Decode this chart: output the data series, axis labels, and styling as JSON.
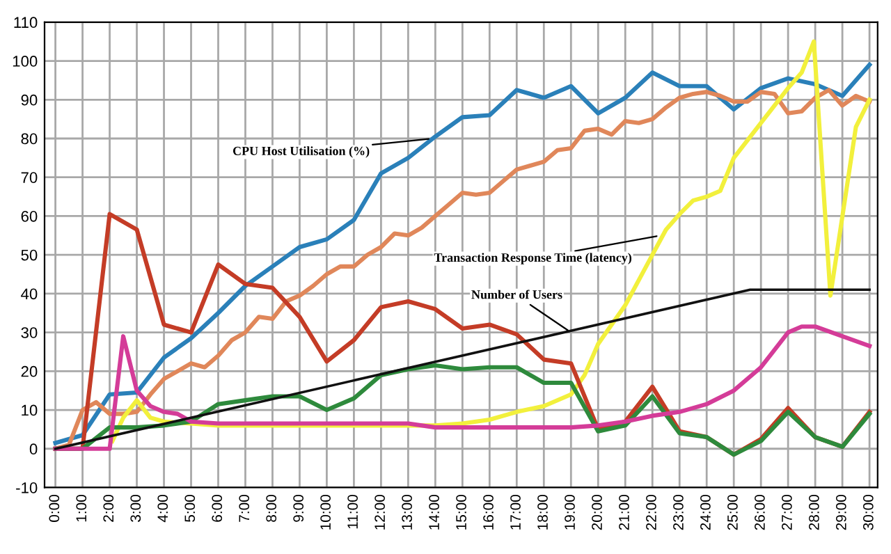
{
  "chart_data": {
    "type": "line",
    "xlim": [
      -0.4,
      30.3
    ],
    "ylim": [
      -10,
      110
    ],
    "xticks": [
      {
        "value": 0,
        "label": "0:00"
      },
      {
        "value": 1,
        "label": "1:00"
      },
      {
        "value": 2,
        "label": "2:00"
      },
      {
        "value": 3,
        "label": "3:00"
      },
      {
        "value": 4,
        "label": "4:00"
      },
      {
        "value": 5,
        "label": "5:00"
      },
      {
        "value": 6,
        "label": "6:00"
      },
      {
        "value": 7,
        "label": "7:00"
      },
      {
        "value": 8,
        "label": "8:00"
      },
      {
        "value": 9,
        "label": "9:00"
      },
      {
        "value": 10,
        "label": "10:00"
      },
      {
        "value": 11,
        "label": "11:00"
      },
      {
        "value": 12,
        "label": "12:00"
      },
      {
        "value": 13,
        "label": "13:00"
      },
      {
        "value": 14,
        "label": "14:00"
      },
      {
        "value": 15,
        "label": "15:00"
      },
      {
        "value": 16,
        "label": "16:00"
      },
      {
        "value": 17,
        "label": "17:00"
      },
      {
        "value": 18,
        "label": "18:00"
      },
      {
        "value": 19,
        "label": "19:00"
      },
      {
        "value": 20,
        "label": "20:00"
      },
      {
        "value": 21,
        "label": "21:00"
      },
      {
        "value": 22,
        "label": "22:00"
      },
      {
        "value": 23,
        "label": "23:00"
      },
      {
        "value": 24,
        "label": "24:00"
      },
      {
        "value": 25,
        "label": "25:00"
      },
      {
        "value": 26,
        "label": "26:00"
      },
      {
        "value": 27,
        "label": "27:00"
      },
      {
        "value": 28,
        "label": "28:00"
      },
      {
        "value": 29,
        "label": "29:00"
      },
      {
        "value": 30,
        "label": "30:00"
      }
    ],
    "yticks": [
      -10,
      0,
      10,
      20,
      30,
      40,
      50,
      60,
      70,
      80,
      90,
      100,
      110
    ],
    "grid": true,
    "legend": false,
    "marker": "none",
    "line_style": "solid",
    "series": [
      {
        "color": "#2a80b9",
        "x": [
          0,
          1,
          2,
          3,
          4,
          5,
          6,
          7,
          8,
          9,
          10,
          11,
          12,
          13,
          14,
          15,
          16,
          17,
          18,
          19,
          20,
          21,
          22,
          23,
          24,
          25,
          26,
          27,
          28,
          29,
          30
        ],
        "values": [
          1.5,
          3.5,
          14,
          14.5,
          23.5,
          28.5,
          35,
          42,
          47,
          52,
          54,
          59,
          71,
          75,
          80.5,
          85.5,
          86,
          92.5,
          90.5,
          93.5,
          86.5,
          90.5,
          97,
          93.5,
          93.5,
          87.5,
          93,
          95.5,
          94,
          91,
          99
        ]
      },
      {
        "color": "#e0875a",
        "x": [
          0,
          0.5,
          1,
          1.5,
          2,
          2.5,
          3,
          3.5,
          4,
          4.5,
          5,
          5.5,
          6,
          6.5,
          7,
          7.5,
          8,
          8.5,
          9,
          9.5,
          10,
          10.5,
          11,
          11.5,
          12,
          12.5,
          13,
          13.5,
          14,
          14.5,
          15,
          15.5,
          16,
          16.5,
          17,
          17.5,
          18,
          18.5,
          19,
          19.5,
          20,
          20.5,
          21,
          21.5,
          22,
          22.5,
          23,
          23.5,
          24,
          24.5,
          25,
          25.5,
          26,
          26.5,
          27,
          27.5,
          28,
          28.5,
          29,
          29.5,
          30
        ],
        "values": [
          0,
          1,
          10,
          12,
          9,
          9,
          9.5,
          14,
          18,
          20,
          22,
          21,
          24,
          28,
          30,
          34,
          33.5,
          38,
          39.5,
          42,
          45,
          47,
          47,
          50,
          52,
          55.5,
          55,
          57,
          60,
          63,
          66,
          65.5,
          66,
          69,
          72,
          73,
          74,
          77,
          77.5,
          82,
          82.5,
          81,
          84.5,
          84,
          85,
          88,
          90.5,
          91.5,
          92,
          91,
          89.5,
          89.5,
          92,
          91.5,
          86.5,
          87,
          90.5,
          92.5,
          88.5,
          91,
          89.5
        ]
      },
      {
        "color": "#f2f03c",
        "x": [
          2.1,
          2.5,
          3,
          3.5,
          4,
          5,
          6,
          7,
          8,
          9,
          10,
          11,
          12,
          13,
          14,
          15,
          16,
          17,
          18,
          19,
          19.5,
          20,
          21,
          22,
          22.5,
          23,
          23.5,
          24,
          24.5,
          25,
          26,
          27,
          27.5,
          27.95,
          28.56,
          29.5,
          30
        ],
        "values": [
          2,
          8,
          12.5,
          8,
          7,
          6.5,
          6,
          6,
          6,
          6,
          6,
          6,
          6,
          6,
          6,
          6.5,
          7.5,
          9.5,
          11,
          14,
          19,
          27,
          37,
          50,
          56.5,
          60.5,
          64,
          65,
          66.5,
          75,
          84,
          93,
          97,
          105,
          39.5,
          83,
          90
        ]
      },
      {
        "color": "#c43c26",
        "x": [
          0,
          1,
          2,
          3,
          4,
          5,
          6,
          7,
          8,
          9,
          10,
          11,
          12,
          13,
          14,
          15,
          16,
          17,
          18,
          19,
          20,
          21,
          22,
          23,
          24,
          25,
          26,
          27,
          28,
          29,
          30
        ],
        "values": [
          0,
          0,
          60.5,
          56.5,
          32,
          30,
          47.5,
          42.5,
          41.5,
          34,
          22.5,
          28,
          36.5,
          38,
          36,
          31,
          32,
          29.5,
          23,
          22,
          5,
          7,
          16,
          4.5,
          3,
          -1.5,
          2.5,
          10.5,
          3,
          0.5,
          9.5
        ]
      },
      {
        "color": "#2e8a3c",
        "x": [
          0,
          1,
          2,
          3,
          4,
          5,
          6,
          7,
          8,
          9,
          10,
          11,
          12,
          13,
          14,
          15,
          16,
          17,
          18,
          19,
          20,
          21,
          22,
          23,
          24,
          25,
          26,
          27,
          28,
          29,
          30
        ],
        "values": [
          0,
          0,
          5.5,
          5.5,
          6,
          7,
          11.5,
          12.5,
          13.5,
          13.5,
          10,
          13,
          19,
          20.5,
          21.5,
          20.5,
          21,
          21,
          17,
          17,
          4.5,
          6,
          13.5,
          4,
          3,
          -1.5,
          2,
          9.5,
          3,
          0.5,
          9
        ]
      },
      {
        "color": "#d43c98",
        "x": [
          0,
          1,
          2,
          2.5,
          3,
          3.5,
          4,
          4.5,
          5,
          6,
          7,
          8,
          9,
          10,
          11,
          12,
          13,
          14,
          15,
          16,
          17,
          18,
          19,
          20,
          21,
          22,
          23,
          24,
          25,
          26,
          27,
          27.5,
          28,
          29,
          30
        ],
        "values": [
          0,
          0,
          0,
          29,
          15,
          11,
          9.5,
          9,
          7,
          6.5,
          6.5,
          6.5,
          6.5,
          6.5,
          6.5,
          6.5,
          6.5,
          5.5,
          5.5,
          5.5,
          5.5,
          5.5,
          5.5,
          6,
          7,
          8.5,
          9.5,
          11.5,
          15,
          21,
          30,
          31.5,
          31.5,
          29,
          26.5
        ]
      },
      {
        "color": "#111111",
        "x": [
          0,
          25.6,
          30
        ],
        "values": [
          0,
          41,
          41
        ]
      }
    ],
    "annotations": [
      {
        "text": "CPU Host Utilisation (%)",
        "x": 13.9,
        "y": 80
      },
      {
        "text": "Transaction Response Time (latency)",
        "x": 22.3,
        "y": 55
      },
      {
        "text": "Number of Users",
        "x": 19,
        "y": 30
      }
    ]
  }
}
